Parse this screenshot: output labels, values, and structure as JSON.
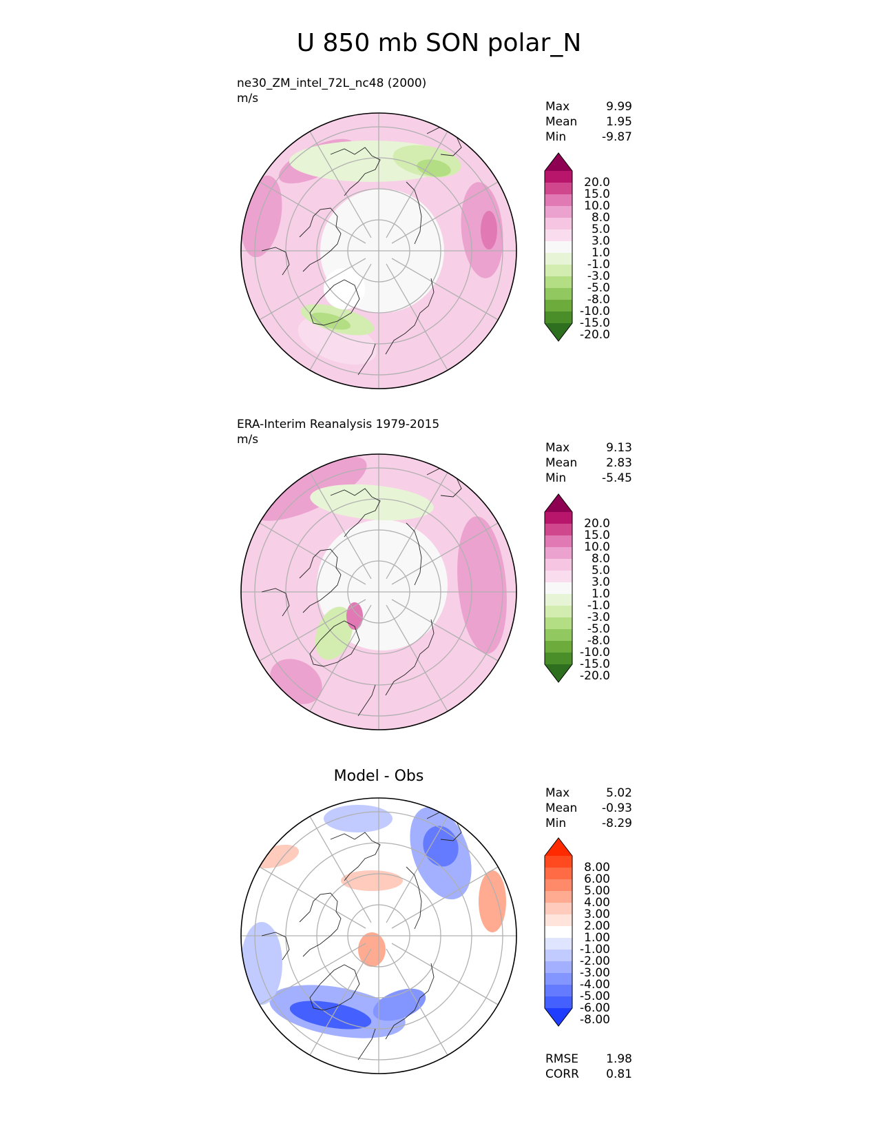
{
  "title": "U 850 mb SON polar_N",
  "panels": [
    {
      "label": "ne30_ZM_intel_72L_nc48 (2000)",
      "units": "m/s",
      "stats": [
        {
          "name": "Max",
          "value": "9.99"
        },
        {
          "name": "Mean",
          "value": "1.95"
        },
        {
          "name": "Min",
          "value": "-9.87"
        }
      ],
      "colorbar": {
        "labels": [
          "20.0",
          "15.0",
          "10.0",
          "8.0",
          "5.0",
          "3.0",
          "1.0",
          "-1.0",
          "-3.0",
          "-5.0",
          "-8.0",
          "-10.0",
          "-15.0",
          "-20.0"
        ],
        "colors": [
          "#8e0152",
          "#b8166b",
          "#d1478e",
          "#e17ab4",
          "#eca2cf",
          "#f5c5e2",
          "#f9ddee",
          "#f8f8f8",
          "#e8f4d6",
          "#d3ecb0",
          "#b4de83",
          "#91c860",
          "#6eab3d",
          "#4a8e29",
          "#2e6f1f"
        ]
      },
      "background": "#f7cfe6"
    },
    {
      "label": "ERA-Interim Reanalysis 1979-2015",
      "units": "m/s",
      "stats": [
        {
          "name": "Max",
          "value": "9.13"
        },
        {
          "name": "Mean",
          "value": "2.83"
        },
        {
          "name": "Min",
          "value": "-5.45"
        }
      ],
      "colorbar": {
        "labels": [
          "20.0",
          "15.0",
          "10.0",
          "8.0",
          "5.0",
          "3.0",
          "1.0",
          "-1.0",
          "-3.0",
          "-5.0",
          "-8.0",
          "-10.0",
          "-15.0",
          "-20.0"
        ],
        "colors": [
          "#8e0152",
          "#b8166b",
          "#d1478e",
          "#e17ab4",
          "#eca2cf",
          "#f5c5e2",
          "#f9ddee",
          "#f8f8f8",
          "#e8f4d6",
          "#d3ecb0",
          "#b4de83",
          "#91c860",
          "#6eab3d",
          "#4a8e29",
          "#2e6f1f"
        ]
      },
      "background": "#f7cfe6"
    },
    {
      "center_title": "Model - Obs",
      "stats": [
        {
          "name": "Max",
          "value": "5.02"
        },
        {
          "name": "Mean",
          "value": "-0.93"
        },
        {
          "name": "Min",
          "value": "-8.29"
        }
      ],
      "bottom_stats": [
        {
          "name": "RMSE",
          "value": "1.98"
        },
        {
          "name": "CORR",
          "value": "0.81"
        }
      ],
      "colorbar": {
        "labels": [
          "8.00",
          "6.00",
          "5.00",
          "4.00",
          "3.00",
          "2.00",
          "1.00",
          "-1.00",
          "-2.00",
          "-3.00",
          "-4.00",
          "-5.00",
          "-6.00",
          "-8.00"
        ],
        "colors": [
          "#ff2a00",
          "#ff4a1f",
          "#ff6b45",
          "#ff8a6a",
          "#ffab92",
          "#ffcbbd",
          "#ffe4dc",
          "#ffffff",
          "#dfe5ff",
          "#c1cbff",
          "#a2b0ff",
          "#8396ff",
          "#647bff",
          "#4460ff",
          "#1f3dff"
        ]
      },
      "background": "#ffffff"
    }
  ]
}
